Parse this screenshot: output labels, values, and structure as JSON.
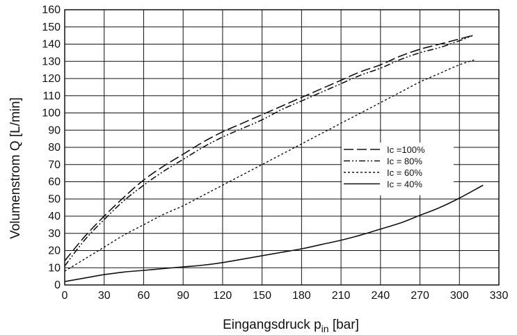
{
  "chart_data": {
    "type": "line",
    "title": "",
    "xlabel_main": "Eingangsdruck p",
    "xlabel_sub": "in",
    "xlabel_unit": " [bar]",
    "ylabel": "Volumenstrom Q [L/min]",
    "xlim": [
      0,
      330
    ],
    "ylim": [
      0,
      160
    ],
    "x_ticks": [
      "0",
      "30",
      "60",
      "90",
      "120",
      "150",
      "180",
      "210",
      "240",
      "270",
      "300",
      "330"
    ],
    "y_ticks": [
      "0",
      "10",
      "20",
      "30",
      "40",
      "50",
      "60",
      "70",
      "80",
      "90",
      "100",
      "110",
      "120",
      "130",
      "140",
      "150",
      "160"
    ],
    "grid": true,
    "legend_position": "right",
    "series": [
      {
        "name": "Ic =100%",
        "style": "dash",
        "x": [
          0,
          15,
          30,
          45,
          60,
          75,
          90,
          105,
          120,
          135,
          150,
          165,
          180,
          195,
          210,
          225,
          240,
          255,
          270,
          285,
          300,
          310
        ],
        "values": [
          14,
          28,
          40,
          51,
          61,
          69,
          76,
          83,
          89,
          94,
          99,
          104,
          109,
          114,
          119,
          124,
          128,
          133,
          137,
          140,
          143,
          145
        ]
      },
      {
        "name": "Ic =  80%",
        "style": "dashdotdot",
        "x": [
          0,
          15,
          30,
          45,
          60,
          75,
          90,
          105,
          120,
          135,
          150,
          165,
          180,
          195,
          210,
          225,
          240,
          255,
          270,
          285,
          300,
          310
        ],
        "values": [
          11,
          26,
          38,
          49,
          58,
          66,
          73,
          80,
          86,
          91,
          96,
          102,
          107,
          112,
          117,
          122,
          126,
          131,
          135,
          138,
          142,
          145
        ]
      },
      {
        "name": "Ic =  60%",
        "style": "dot",
        "x": [
          0,
          15,
          30,
          45,
          60,
          75,
          90,
          105,
          120,
          135,
          150,
          165,
          180,
          195,
          210,
          225,
          240,
          255,
          270,
          285,
          300,
          312
        ],
        "values": [
          8,
          15,
          22,
          29,
          35,
          41,
          46,
          52,
          58,
          64,
          70,
          76,
          82,
          88,
          94,
          100,
          106,
          112,
          118,
          123,
          128,
          131
        ]
      },
      {
        "name": "Ic =  40%",
        "style": "solid",
        "x": [
          0,
          15,
          30,
          45,
          60,
          75,
          90,
          105,
          120,
          135,
          150,
          165,
          180,
          195,
          210,
          225,
          240,
          255,
          270,
          285,
          300,
          318
        ],
        "values": [
          2,
          4,
          6,
          7.5,
          8.5,
          9.5,
          10.5,
          11.5,
          13,
          15,
          17,
          19,
          21,
          23.5,
          26,
          29,
          32.5,
          36,
          40.5,
          45,
          50.5,
          58
        ]
      }
    ]
  }
}
